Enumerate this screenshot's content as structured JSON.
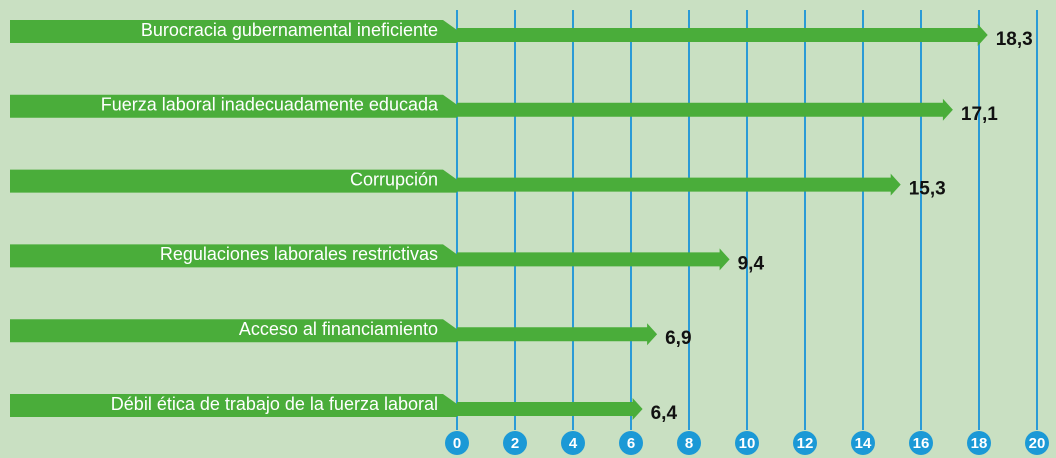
{
  "chart_data": {
    "type": "bar",
    "orientation": "horizontal",
    "categories": [
      "Burocracia gubernamental ineficiente",
      "Fuerza laboral inadecuadamente educada",
      "Corrupción",
      "Regulaciones laborales restrictivas",
      "Acceso al financiamiento",
      "Débil ética de trabajo de la fuerza laboral"
    ],
    "values": [
      18.3,
      17.1,
      15.3,
      9.4,
      6.9,
      6.4
    ],
    "value_labels": [
      "18,3",
      "17,1",
      "15,3",
      "9,4",
      "6,9",
      "6,4"
    ],
    "color": "#4aad3a",
    "grid_color": "#2a9bd6",
    "xlim": [
      0,
      20
    ],
    "xticks": [
      0,
      2,
      4,
      6,
      8,
      10,
      12,
      14,
      16,
      18,
      20
    ],
    "grid": true
  }
}
